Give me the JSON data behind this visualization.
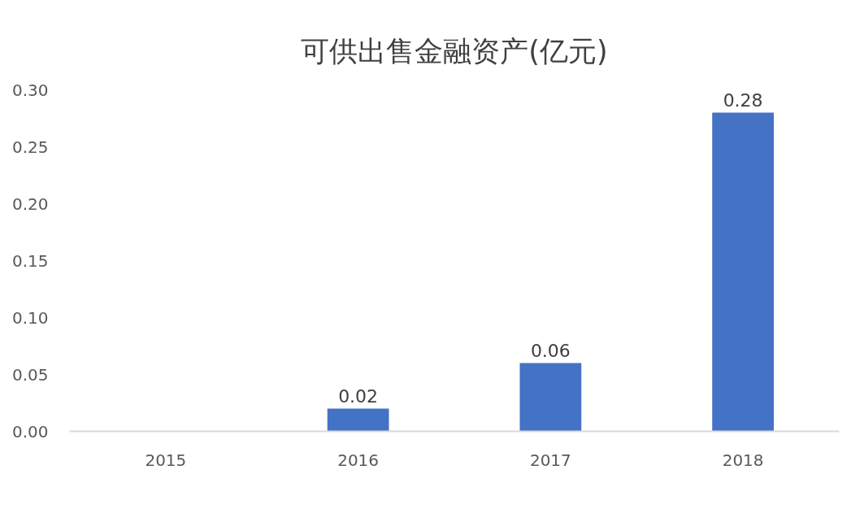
{
  "chart_data": {
    "type": "bar",
    "title": "可供出售金融资产(亿元)",
    "categories": [
      "2015",
      "2016",
      "2017",
      "2018"
    ],
    "values": [
      null,
      0.02,
      0.06,
      0.28
    ],
    "color": "#4472c4",
    "ylim": [
      0,
      0.3
    ],
    "yticks": [
      {
        "value": 0,
        "label": "0.00"
      },
      {
        "value": 0.05,
        "label": "0.05"
      },
      {
        "value": 0.1,
        "label": "0.10"
      },
      {
        "value": 0.15,
        "label": "0.15"
      },
      {
        "value": 0.2,
        "label": "0.20"
      },
      {
        "value": 0.25,
        "label": "0.25"
      },
      {
        "value": 0.3,
        "label": "0.30"
      }
    ],
    "grid": false,
    "data_labels": true
  }
}
